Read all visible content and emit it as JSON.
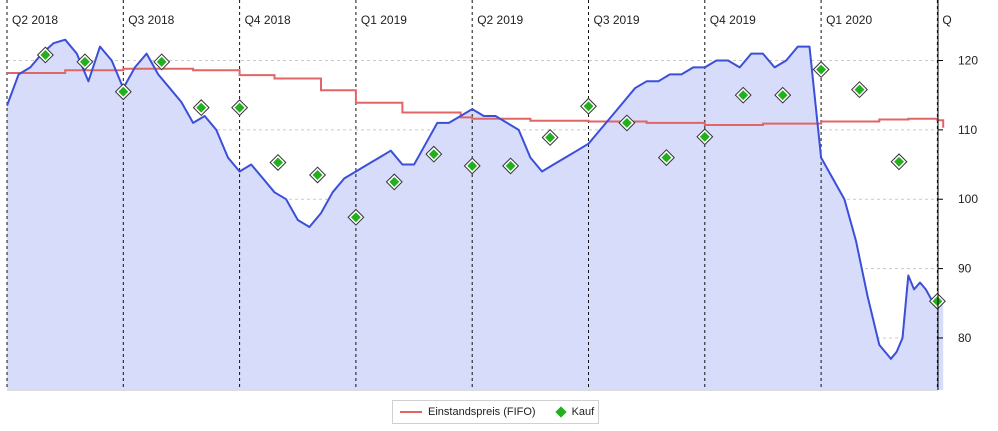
{
  "chart_data": {
    "type": "line",
    "title": "",
    "xlabel": "",
    "ylabel": "",
    "ylim": [
      72.5,
      128
    ],
    "yticks": [
      80,
      90,
      100,
      110,
      120
    ],
    "grid": true,
    "legend_position": "bottom-center",
    "quarters": [
      "Q2 2018",
      "Q3 2018",
      "Q4 2018",
      "Q1 2019",
      "Q2 2019",
      "Q3 2019",
      "Q4 2019",
      "Q1 2020",
      "Q"
    ],
    "series": [
      {
        "name": "",
        "kind": "area-line",
        "color": "#3b4fd9",
        "fill": "#d8dcfb",
        "x": [
          0.0,
          0.1,
          0.2,
          0.3,
          0.4,
          0.5,
          0.6,
          0.7,
          0.8,
          0.9,
          1.0,
          1.1,
          1.2,
          1.3,
          1.4,
          1.5,
          1.6,
          1.7,
          1.8,
          1.9,
          2.0,
          2.1,
          2.2,
          2.3,
          2.4,
          2.5,
          2.6,
          2.7,
          2.8,
          2.9,
          3.0,
          3.1,
          3.2,
          3.3,
          3.4,
          3.5,
          3.6,
          3.7,
          3.8,
          3.9,
          4.0,
          4.1,
          4.2,
          4.3,
          4.4,
          4.5,
          4.6,
          4.7,
          4.8,
          4.9,
          5.0,
          5.1,
          5.2,
          5.3,
          5.4,
          5.5,
          5.6,
          5.7,
          5.8,
          5.9,
          6.0,
          6.1,
          6.2,
          6.3,
          6.4,
          6.5,
          6.6,
          6.7,
          6.8,
          6.9,
          7.0,
          7.1,
          7.2,
          7.3,
          7.4,
          7.5,
          7.6,
          7.65,
          7.7,
          7.75,
          7.8,
          7.85,
          7.9,
          7.95,
          8.0,
          8.05
        ],
        "values": [
          113.5,
          118,
          119,
          121,
          122.5,
          123,
          121,
          117,
          122,
          120,
          116,
          119,
          121,
          118,
          116,
          114,
          111,
          112,
          110,
          106,
          104,
          105,
          103,
          101,
          100,
          97,
          96,
          98,
          101,
          103,
          104,
          105,
          106,
          107,
          105,
          105,
          108,
          111,
          111,
          112,
          113,
          112,
          112,
          111,
          110,
          106,
          104,
          105,
          106,
          107,
          108,
          110,
          112,
          114,
          116,
          117,
          117,
          118,
          118,
          119,
          119,
          120,
          120,
          119,
          121,
          121,
          119,
          120,
          122,
          122,
          106,
          103,
          100,
          94,
          86,
          79,
          77,
          78,
          80,
          89,
          87,
          88,
          87,
          85.5,
          85.3,
          85.2
        ]
      },
      {
        "name": "Einstandspreis (FIFO)",
        "kind": "step-line",
        "color": "#e06666",
        "x": [
          0.0,
          0.5,
          1.0,
          1.6,
          2.0,
          2.3,
          2.7,
          3.0,
          3.4,
          3.9,
          4.0,
          4.5,
          5.0,
          5.5,
          6.0,
          6.5,
          7.0,
          7.5,
          7.75,
          8.0,
          8.05
        ],
        "values": [
          118.2,
          118.6,
          118.8,
          118.6,
          117.9,
          117.4,
          115.7,
          113.9,
          112.5,
          111.8,
          111.6,
          111.3,
          111.2,
          111,
          110.7,
          110.9,
          111.2,
          111.5,
          111.6,
          111.4,
          110.3
        ]
      }
    ],
    "purchases": {
      "name": "Kauf",
      "color": "#22b01f",
      "x": [
        0.33,
        0.67,
        1.0,
        1.33,
        1.67,
        2.0,
        2.33,
        2.67,
        3.0,
        3.33,
        3.67,
        4.0,
        4.33,
        4.67,
        5.0,
        5.33,
        5.67,
        6.0,
        6.33,
        6.67,
        7.0,
        7.33,
        7.67,
        8.0
      ],
      "values": [
        120.8,
        119.8,
        115.5,
        119.8,
        113.2,
        113.2,
        105.3,
        103.5,
        97.4,
        102.5,
        106.5,
        104.8,
        104.8,
        108.9,
        113.4,
        111,
        106,
        109,
        115,
        115,
        118.7,
        115.8,
        105.4,
        85.3
      ]
    }
  },
  "legend": {
    "line_label": "Einstandspreis (FIFO)",
    "marker_label": "Kauf"
  }
}
